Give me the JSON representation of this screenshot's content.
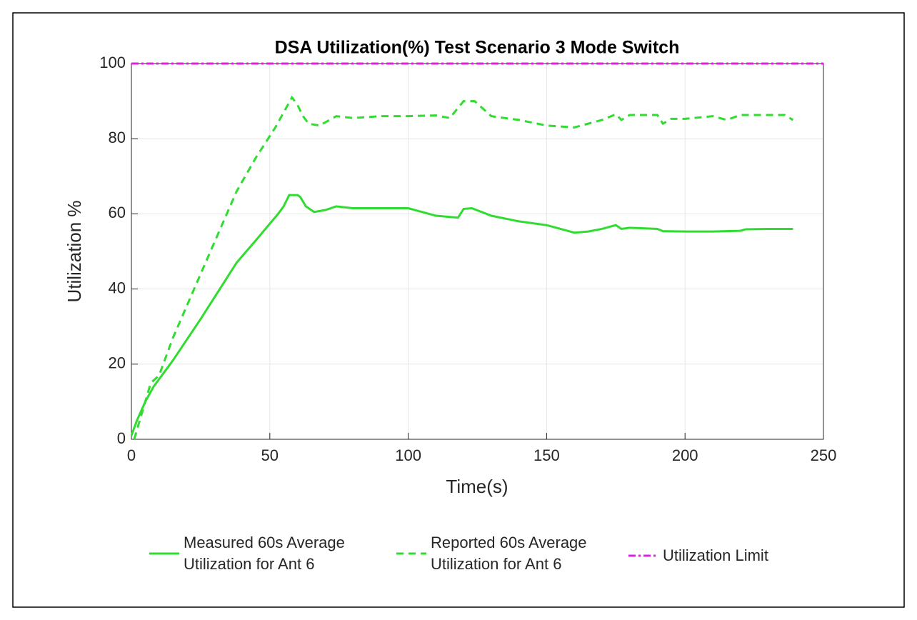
{
  "chart_data": {
    "type": "line",
    "title": "DSA Utilization(%) Test Scenario 3 Mode Switch",
    "xlabel": "Time(s)",
    "ylabel": "Utilization %",
    "xlim": [
      0,
      250
    ],
    "xticks": [
      0,
      50,
      100,
      150,
      200,
      250
    ],
    "ylim": [
      0,
      100
    ],
    "yticks": [
      0,
      20,
      40,
      60,
      80,
      100
    ],
    "grid": true,
    "legend": "bottom",
    "series": [
      {
        "name": "Measured 60s Average Utilization for Ant 6",
        "color": "#2fdc2f",
        "style": "solid",
        "x": [
          0,
          2,
          5,
          8,
          15,
          25,
          38,
          45,
          53,
          55,
          57,
          60,
          61,
          63,
          66,
          70,
          74,
          80,
          90,
          100,
          110,
          118,
          120,
          123,
          130,
          140,
          150,
          155,
          160,
          165,
          170,
          175,
          177,
          180,
          190,
          192,
          200,
          210,
          220,
          222,
          230,
          239
        ],
        "values": [
          1,
          5,
          10,
          14,
          21,
          32,
          47,
          53,
          60,
          62,
          65,
          65,
          64.5,
          62,
          60.5,
          61,
          62,
          61.5,
          61.5,
          61.5,
          59.5,
          59,
          61.3,
          61.5,
          59.5,
          58,
          57,
          56,
          55,
          55.3,
          56,
          57,
          56,
          56.3,
          56,
          55.4,
          55.3,
          55.3,
          55.5,
          55.9,
          56,
          56
        ]
      },
      {
        "name": "Reported 60s Average Utilization for Ant 6",
        "color": "#2fdc2f",
        "style": "dashed",
        "x": [
          1,
          3,
          5,
          7,
          10,
          15,
          25,
          38,
          45,
          52,
          55,
          58,
          60,
          62,
          64,
          68,
          74,
          80,
          90,
          100,
          110,
          115,
          120,
          124,
          130,
          140,
          150,
          160,
          170,
          175,
          177,
          180,
          190,
          192,
          195,
          200,
          210,
          215,
          220,
          230,
          236,
          239
        ],
        "values": [
          0,
          5,
          10,
          15,
          17,
          27,
          44,
          66,
          75,
          83,
          87,
          91,
          89,
          86,
          84,
          83.5,
          86,
          85.5,
          86,
          86,
          86.2,
          85.5,
          90,
          90,
          86,
          85,
          83.5,
          83,
          85,
          86.5,
          85,
          86.3,
          86.3,
          84,
          85.3,
          85.3,
          86,
          85,
          86.3,
          86.3,
          86.3,
          85
        ]
      },
      {
        "name": "Utilization Limit",
        "color": "#e020e0",
        "style": "dashdot",
        "x": [
          0,
          250
        ],
        "values": [
          100,
          100
        ]
      }
    ]
  }
}
